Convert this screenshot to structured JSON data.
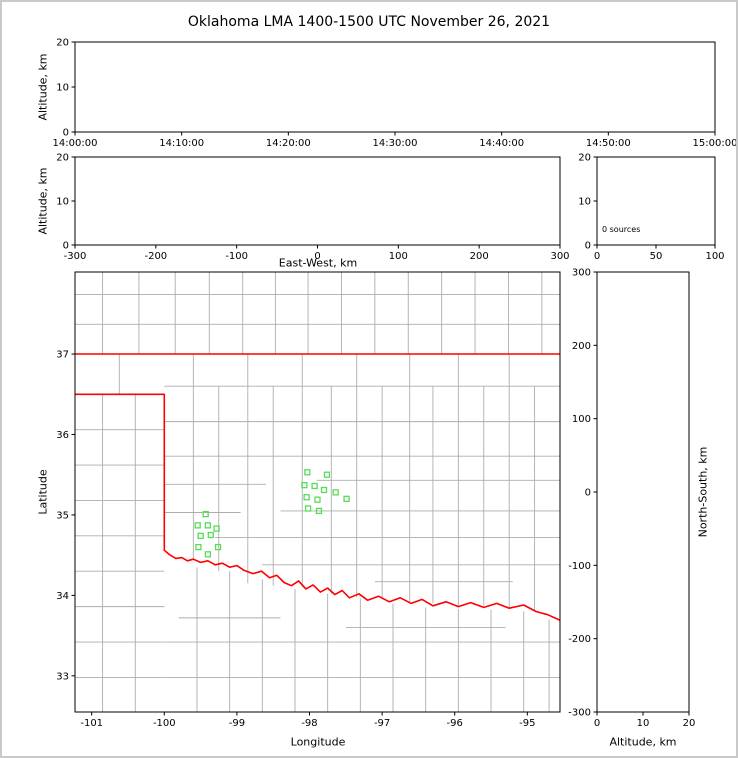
{
  "title": "Oklahoma LMA 1400-1500 UTC November 26, 2021",
  "colors": {
    "axes": "#000000",
    "state_border": "#ff0000",
    "county_line": "#adadad",
    "station_marker": "#55dd55",
    "figure_frame": "#c9c9c9"
  },
  "chart_data": [
    {
      "id": "time_height",
      "type": "scatter",
      "ylabel": "Altitude, km",
      "xlim": [
        0,
        6
      ],
      "ylim": [
        0,
        20
      ],
      "xticks": [
        0,
        1,
        2,
        3,
        4,
        5,
        6
      ],
      "xtick_labels": [
        "14:00:00",
        "14:10:00",
        "14:20:00",
        "14:30:00",
        "14:40:00",
        "14:50:00",
        "15:00:00"
      ],
      "yticks": [
        0,
        10,
        20
      ],
      "points": []
    },
    {
      "id": "ew_height",
      "type": "scatter",
      "xlabel": "East-West, km",
      "ylabel": "Altitude, km",
      "xlim": [
        -300,
        300
      ],
      "ylim": [
        0,
        20
      ],
      "xticks": [
        -300,
        -200,
        -100,
        0,
        100,
        200,
        300
      ],
      "yticks": [
        0,
        10,
        20
      ],
      "points": []
    },
    {
      "id": "source_histogram",
      "type": "line",
      "annotation": "0 sources",
      "xlim": [
        0,
        100
      ],
      "ylim": [
        0,
        20
      ],
      "xticks": [
        0,
        50,
        100
      ],
      "yticks": [
        0,
        10,
        20
      ],
      "points": []
    },
    {
      "id": "plan_view",
      "type": "scatter",
      "xlabel": "Longitude",
      "ylabel": "Latitude",
      "xlim": [
        -101.23,
        -94.55
      ],
      "ylim": [
        32.55,
        38.02
      ],
      "xticks": [
        -101,
        -100,
        -99,
        -98,
        -97,
        -96,
        -95
      ],
      "yticks": [
        33,
        34,
        35,
        36,
        37
      ],
      "stations": [
        [
          -99.43,
          35.01
        ],
        [
          -99.54,
          34.87
        ],
        [
          -99.4,
          34.87
        ],
        [
          -99.28,
          34.83
        ],
        [
          -99.5,
          34.74
        ],
        [
          -99.36,
          34.75
        ],
        [
          -99.53,
          34.6
        ],
        [
          -99.4,
          34.51
        ],
        [
          -99.26,
          34.6
        ],
        [
          -98.03,
          35.53
        ],
        [
          -97.76,
          35.5
        ],
        [
          -98.07,
          35.37
        ],
        [
          -97.93,
          35.36
        ],
        [
          -97.8,
          35.31
        ],
        [
          -97.64,
          35.28
        ],
        [
          -98.04,
          35.22
        ],
        [
          -97.89,
          35.19
        ],
        [
          -98.02,
          35.08
        ],
        [
          -97.87,
          35.05
        ],
        [
          -97.49,
          35.2
        ]
      ],
      "state_border": [
        [
          [
            -101.23,
            37
          ],
          [
            -94.55,
            37
          ]
        ],
        [
          [
            -101.23,
            36.5
          ],
          [
            -100,
            36.5
          ],
          [
            -100,
            34.56
          ],
          [
            -99.92,
            34.5
          ],
          [
            -99.84,
            34.46
          ],
          [
            -99.76,
            34.47
          ],
          [
            -99.68,
            34.43
          ],
          [
            -99.6,
            34.45
          ],
          [
            -99.5,
            34.41
          ],
          [
            -99.4,
            34.43
          ],
          [
            -99.3,
            34.38
          ],
          [
            -99.2,
            34.4
          ],
          [
            -99.1,
            34.35
          ],
          [
            -99.0,
            34.37
          ],
          [
            -98.9,
            34.31
          ],
          [
            -98.78,
            34.27
          ],
          [
            -98.66,
            34.3
          ],
          [
            -98.55,
            34.22
          ],
          [
            -98.45,
            34.25
          ],
          [
            -98.35,
            34.16
          ],
          [
            -98.25,
            34.12
          ],
          [
            -98.15,
            34.18
          ],
          [
            -98.05,
            34.08
          ],
          [
            -97.95,
            34.13
          ],
          [
            -97.85,
            34.04
          ],
          [
            -97.75,
            34.09
          ],
          [
            -97.65,
            34.01
          ],
          [
            -97.55,
            34.06
          ],
          [
            -97.45,
            33.97
          ],
          [
            -97.32,
            34.02
          ],
          [
            -97.2,
            33.94
          ],
          [
            -97.05,
            33.99
          ],
          [
            -96.9,
            33.92
          ],
          [
            -96.75,
            33.97
          ],
          [
            -96.6,
            33.9
          ],
          [
            -96.45,
            33.95
          ],
          [
            -96.3,
            33.87
          ],
          [
            -96.12,
            33.92
          ],
          [
            -95.95,
            33.86
          ],
          [
            -95.78,
            33.91
          ],
          [
            -95.6,
            33.85
          ],
          [
            -95.42,
            33.9
          ],
          [
            -95.25,
            33.84
          ],
          [
            -95.05,
            33.88
          ],
          [
            -94.88,
            33.8
          ],
          [
            -94.72,
            33.76
          ],
          [
            -94.55,
            33.69
          ]
        ]
      ],
      "county_segments": [
        [
          -100.85,
          37,
          -100.85,
          38.02
        ],
        [
          -100.35,
          37,
          -100.35,
          38.02
        ],
        [
          -99.85,
          37,
          -99.85,
          38.02
        ],
        [
          -99.38,
          37,
          -99.38,
          38.02
        ],
        [
          -98.92,
          37,
          -98.92,
          38.02
        ],
        [
          -98.47,
          37,
          -98.47,
          38.02
        ],
        [
          -98.02,
          37,
          -98.02,
          38.02
        ],
        [
          -97.56,
          37,
          -97.56,
          38.02
        ],
        [
          -97.1,
          37,
          -97.1,
          38.02
        ],
        [
          -96.64,
          37,
          -96.64,
          38.02
        ],
        [
          -96.18,
          37,
          -96.18,
          38.02
        ],
        [
          -95.72,
          37,
          -95.72,
          38.02
        ],
        [
          -95.26,
          37,
          -95.26,
          38.02
        ],
        [
          -94.8,
          37,
          -94.8,
          38.02
        ],
        [
          -101.23,
          37.37,
          -94.55,
          37.37
        ],
        [
          -101.23,
          37.74,
          -94.55,
          37.74
        ],
        [
          -100.85,
          32.55,
          -100.85,
          36.5
        ],
        [
          -100.4,
          32.55,
          -100.4,
          36.5
        ],
        [
          -101.23,
          36.06,
          -100,
          36.06
        ],
        [
          -101.23,
          35.62,
          -100,
          35.62
        ],
        [
          -101.23,
          35.18,
          -100,
          35.18
        ],
        [
          -101.23,
          34.74,
          -100,
          34.74
        ],
        [
          -101.23,
          34.3,
          -100,
          34.3
        ],
        [
          -101.23,
          33.86,
          -100,
          33.86
        ],
        [
          -101.23,
          33.42,
          -100,
          33.42
        ],
        [
          -101.23,
          32.98,
          -100,
          32.98
        ],
        [
          -99.55,
          32.55,
          -99.55,
          34.35
        ],
        [
          -99.1,
          32.55,
          -99.1,
          34.3
        ],
        [
          -98.65,
          32.55,
          -98.65,
          34.2
        ],
        [
          -98.2,
          32.55,
          -98.2,
          34.08
        ],
        [
          -97.75,
          32.55,
          -97.75,
          34.02
        ],
        [
          -97.3,
          32.55,
          -97.3,
          33.96
        ],
        [
          -96.85,
          32.55,
          -96.85,
          33.9
        ],
        [
          -96.4,
          32.55,
          -96.4,
          33.85
        ],
        [
          -95.95,
          32.55,
          -95.95,
          33.83
        ],
        [
          -95.5,
          32.55,
          -95.5,
          33.82
        ],
        [
          -95.05,
          32.55,
          -95.05,
          33.8
        ],
        [
          -94.7,
          32.55,
          -94.7,
          33.7
        ],
        [
          -100,
          33.42,
          -94.55,
          33.42
        ],
        [
          -100,
          32.98,
          -94.55,
          32.98
        ],
        [
          -99.8,
          33.72,
          -98.4,
          33.72
        ],
        [
          -97.5,
          33.6,
          -95.3,
          33.6
        ],
        [
          -100.62,
          36.5,
          -100.62,
          37
        ],
        [
          -99.6,
          34.45,
          -99.6,
          37
        ],
        [
          -99.25,
          34.3,
          -99.25,
          36.6
        ],
        [
          -98.85,
          34.15,
          -98.85,
          37
        ],
        [
          -98.5,
          34.12,
          -98.5,
          36.6
        ],
        [
          -98.1,
          34.1,
          -98.1,
          37
        ],
        [
          -97.7,
          34.02,
          -97.7,
          36.6
        ],
        [
          -97.35,
          33.98,
          -97.35,
          37
        ],
        [
          -97.0,
          33.96,
          -97.0,
          36.6
        ],
        [
          -96.62,
          33.92,
          -96.62,
          37
        ],
        [
          -96.3,
          33.9,
          -96.3,
          36.6
        ],
        [
          -95.95,
          33.87,
          -95.95,
          37
        ],
        [
          -95.6,
          33.87,
          -95.6,
          36.6
        ],
        [
          -95.25,
          33.85,
          -95.25,
          37
        ],
        [
          -94.9,
          33.8,
          -94.9,
          36.6
        ],
        [
          -100,
          36.6,
          -94.55,
          36.6
        ],
        [
          -100,
          36.16,
          -94.55,
          36.16
        ],
        [
          -100,
          35.73,
          -94.55,
          35.73
        ],
        [
          -100,
          35.38,
          -98.6,
          35.38
        ],
        [
          -97.9,
          35.43,
          -94.55,
          35.43
        ],
        [
          -100,
          35.03,
          -98.95,
          35.03
        ],
        [
          -98.4,
          35.05,
          -94.55,
          35.05
        ],
        [
          -99.3,
          34.72,
          -94.55,
          34.72
        ],
        [
          -98.65,
          34.38,
          -94.55,
          34.38
        ],
        [
          -97.1,
          34.17,
          -95.2,
          34.17
        ]
      ],
      "points": []
    },
    {
      "id": "ns_height",
      "type": "scatter",
      "xlabel": "Altitude, km",
      "ylabel": "North-South, km",
      "xlim": [
        0,
        20
      ],
      "ylim": [
        -300,
        300
      ],
      "xticks": [
        0,
        10,
        20
      ],
      "yticks": [
        -300,
        -200,
        -100,
        0,
        100,
        200,
        300
      ],
      "points": []
    }
  ]
}
